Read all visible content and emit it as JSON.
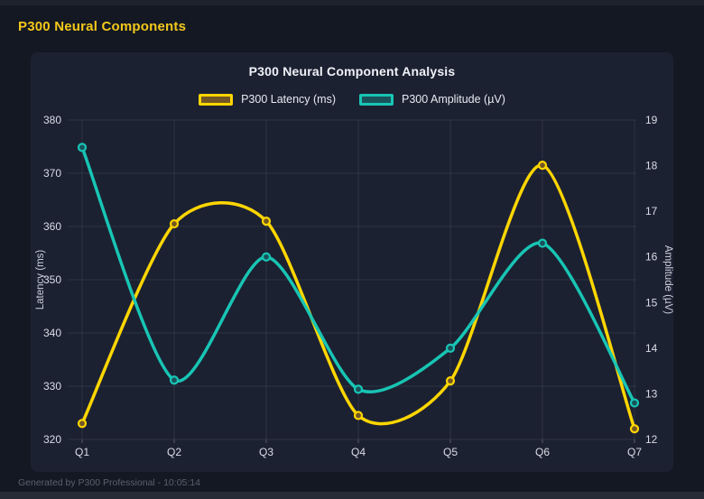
{
  "page": {
    "title": "P300 Neural Components",
    "footer": "Generated by P300 Professional - 10:05:14"
  },
  "colors": {
    "page_bg": "#141823",
    "panel_bg": "#1c2132",
    "grid": "rgba(255,255,255,0.08)",
    "tick_text": "#d9dde6",
    "axis_title_text": "#ccd1db",
    "latency_yellow": "#ffd600",
    "amplitude_teal": "#18c5b4",
    "header_yellow": "#f3c81b"
  },
  "chart_data": {
    "type": "line",
    "title": "P300 Neural Component Analysis",
    "categories": [
      "Q1",
      "Q2",
      "Q3",
      "Q4",
      "Q5",
      "Q6",
      "Q7"
    ],
    "series": [
      {
        "name": "P300 Latency (ms)",
        "axis": "left",
        "color": "#ffd600",
        "marker_fill": "#725724",
        "values": [
          323,
          360.5,
          361,
          324.5,
          331,
          371.5,
          322
        ]
      },
      {
        "name": "P300 Amplitude (µV)",
        "axis": "right",
        "color": "#18c5b4",
        "marker_fill": "#1a525a",
        "values": [
          18.4,
          13.3,
          16.0,
          13.1,
          14.0,
          16.3,
          12.8
        ]
      }
    ],
    "y_left": {
      "label": "Latency (ms)",
      "min": 320,
      "max": 380,
      "ticks": [
        320,
        330,
        340,
        350,
        360,
        370,
        380
      ]
    },
    "y_right": {
      "label": "Amplitude (µV)",
      "min": 12,
      "max": 19,
      "ticks": [
        12,
        13,
        14,
        15,
        16,
        17,
        18,
        19
      ]
    },
    "ylim_left": [
      320,
      380
    ],
    "ylim_right": [
      12,
      19
    ],
    "grid": true,
    "smooth": true,
    "legend_position": "top"
  }
}
